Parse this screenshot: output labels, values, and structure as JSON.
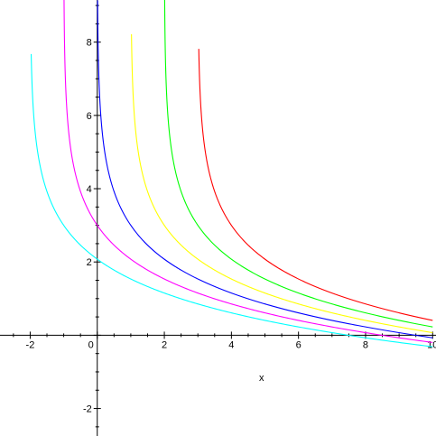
{
  "chart_data": {
    "type": "line",
    "title": "",
    "xlabel": "",
    "ylabel": "",
    "xlim": [
      -2.9,
      10.1
    ],
    "ylim": [
      -2.75,
      9.15
    ],
    "xticks": [
      -2,
      0,
      2,
      4,
      6,
      8,
      10
    ],
    "yticks": [
      -2,
      2,
      4,
      6,
      8
    ],
    "grid": false,
    "legend": "none",
    "function_form": "y = 3 - ln(x - a) * 4/3",
    "series": [
      {
        "a": -2,
        "color": "#00ffff",
        "x_start": -1.97,
        "x_end": 10
      },
      {
        "a": -1,
        "color": "#ff00ff",
        "x_start": -0.995,
        "x_end": 10
      },
      {
        "a": 0,
        "color": "#0000ff",
        "x_start": 0.01,
        "x_end": 10
      },
      {
        "a": 1,
        "color": "#ffff00",
        "x_start": 1.02,
        "x_end": 10
      },
      {
        "a": 2,
        "color": "#00ff00",
        "x_start": 2.0018,
        "x_end": 10
      },
      {
        "a": 3,
        "color": "#ff0000",
        "x_start": 3.027,
        "x_end": 10
      }
    ],
    "annotations": [
      {
        "text": "x",
        "x": 4.9,
        "y": -1.15
      }
    ]
  }
}
